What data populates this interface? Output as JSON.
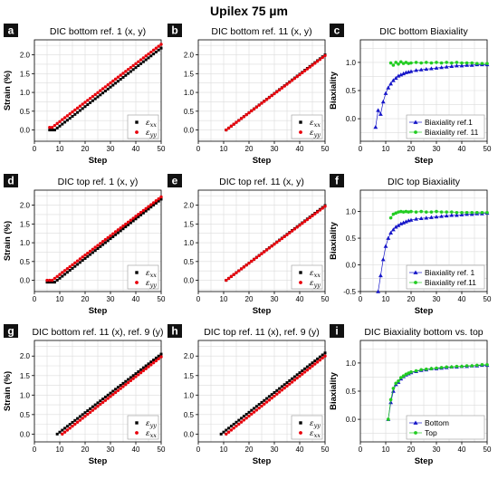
{
  "figure": {
    "title": "Upilex 75 µm"
  },
  "colors": {
    "exx": "#000000",
    "eyy": "#e8000b",
    "ref1": "#1515c8",
    "ref11": "#22cc22",
    "grid": "#dcdcdc"
  },
  "chart_data": [
    {
      "letter": "a",
      "type": "scatter",
      "title": "DIC bottom ref. 1 (x, y)",
      "xlabel": "Step",
      "ylabel": "Strain (%)",
      "xlim": [
        0,
        50
      ],
      "ylim": [
        -0.3,
        2.4
      ],
      "xticks": [
        0,
        10,
        20,
        30,
        40,
        50
      ],
      "yticks": [
        0.0,
        0.5,
        1.0,
        1.5,
        2.0
      ],
      "legend": "bottom-right",
      "grid": true,
      "series": [
        {
          "name": "εxx",
          "color": "#000000",
          "marker": "square",
          "gen": {
            "x0": 6,
            "x1": 50,
            "y0": -0.01,
            "y1": 2.18,
            "knee": 8,
            "yk": 0.0
          }
        },
        {
          "name": "εyy",
          "color": "#e8000b",
          "marker": "circle",
          "gen": {
            "x0": 6,
            "x1": 50,
            "y0": 0.05,
            "y1": 2.28,
            "knee": 7,
            "yk": 0.07
          }
        }
      ]
    },
    {
      "letter": "b",
      "type": "scatter",
      "title": "DIC bottom ref. 11 (x, y)",
      "xlabel": "Step",
      "ylabel": "",
      "xlim": [
        0,
        50
      ],
      "ylim": [
        -0.3,
        2.4
      ],
      "xticks": [
        0,
        10,
        20,
        30,
        40,
        50
      ],
      "yticks": [
        0.0,
        0.5,
        1.0,
        1.5,
        2.0
      ],
      "legend": "bottom-right",
      "grid": true,
      "series": [
        {
          "name": "εxx",
          "color": "#000000",
          "marker": "square",
          "gen": {
            "x0": 11,
            "x1": 50,
            "y0": 0.0,
            "y1": 2.0
          }
        },
        {
          "name": "εyy",
          "color": "#e8000b",
          "marker": "circle",
          "gen": {
            "x0": 11,
            "x1": 50,
            "y0": 0.0,
            "y1": 1.98
          }
        }
      ]
    },
    {
      "letter": "c",
      "type": "scatter",
      "title": "DIC bottom Biaxiality",
      "xlabel": "Step",
      "ylabel": "Biaxiality",
      "xlim": [
        0,
        50
      ],
      "ylim": [
        -0.4,
        1.4
      ],
      "xticks": [
        0,
        10,
        20,
        30,
        40,
        50
      ],
      "yticks": [
        0.0,
        0.5,
        1.0
      ],
      "legend": "bottom-right",
      "grid": true,
      "series": [
        {
          "name": "Biaxiality ref.1",
          "color": "#1515c8",
          "marker": "triangle",
          "line": true,
          "points": [
            [
              6,
              -0.15
            ],
            [
              7,
              0.15
            ],
            [
              8,
              0.08
            ],
            [
              9,
              0.3
            ],
            [
              10,
              0.45
            ],
            [
              11,
              0.55
            ],
            [
              12,
              0.62
            ],
            [
              13,
              0.68
            ],
            [
              14,
              0.72
            ],
            [
              15,
              0.76
            ],
            [
              16,
              0.78
            ],
            [
              17,
              0.8
            ],
            [
              18,
              0.82
            ],
            [
              19,
              0.83
            ],
            [
              20,
              0.84
            ],
            [
              22,
              0.86
            ],
            [
              24,
              0.87
            ],
            [
              26,
              0.88
            ],
            [
              28,
              0.89
            ],
            [
              30,
              0.9
            ],
            [
              32,
              0.91
            ],
            [
              34,
              0.92
            ],
            [
              36,
              0.93
            ],
            [
              38,
              0.94
            ],
            [
              40,
              0.94
            ],
            [
              42,
              0.95
            ],
            [
              44,
              0.95
            ],
            [
              46,
              0.96
            ],
            [
              48,
              0.96
            ],
            [
              50,
              0.96
            ]
          ]
        },
        {
          "name": "Biaxiality ref. 11",
          "color": "#22cc22",
          "marker": "circle",
          "line": true,
          "points": [
            [
              12,
              0.99
            ],
            [
              13,
              0.95
            ],
            [
              14,
              1.0
            ],
            [
              15,
              0.97
            ],
            [
              16,
              1.01
            ],
            [
              17,
              0.98
            ],
            [
              18,
              1.0
            ],
            [
              19,
              0.98
            ],
            [
              20,
              0.99
            ],
            [
              22,
              1.0
            ],
            [
              24,
              0.99
            ],
            [
              26,
              1.0
            ],
            [
              28,
              0.99
            ],
            [
              30,
              1.0
            ],
            [
              32,
              0.99
            ],
            [
              34,
              1.0
            ],
            [
              36,
              0.99
            ],
            [
              38,
              1.0
            ],
            [
              40,
              0.99
            ],
            [
              42,
              0.99
            ],
            [
              44,
              0.99
            ],
            [
              46,
              0.98
            ],
            [
              48,
              0.98
            ],
            [
              50,
              0.98
            ]
          ]
        }
      ]
    },
    {
      "letter": "d",
      "type": "scatter",
      "title": "DIC top ref. 1 (x, y)",
      "xlabel": "Step",
      "ylabel": "Strain (%)",
      "xlim": [
        0,
        50
      ],
      "ylim": [
        -0.3,
        2.4
      ],
      "xticks": [
        0,
        10,
        20,
        30,
        40,
        50
      ],
      "yticks": [
        0.0,
        0.5,
        1.0,
        1.5,
        2.0
      ],
      "legend": "bottom-right",
      "grid": true,
      "series": [
        {
          "name": "εxx",
          "color": "#000000",
          "marker": "square",
          "gen": {
            "x0": 5,
            "x1": 50,
            "y0": 0.0,
            "y1": 2.16,
            "knee": 8,
            "yk": -0.05
          }
        },
        {
          "name": "εyy",
          "color": "#e8000b",
          "marker": "circle",
          "gen": {
            "x0": 5,
            "x1": 50,
            "y0": 0.0,
            "y1": 2.22,
            "knee": 7,
            "yk": 0.0
          }
        }
      ]
    },
    {
      "letter": "e",
      "type": "scatter",
      "title": "DIC top ref. 11 (x, y)",
      "xlabel": "Step",
      "ylabel": "",
      "xlim": [
        0,
        50
      ],
      "ylim": [
        -0.3,
        2.4
      ],
      "xticks": [
        0,
        10,
        20,
        30,
        40,
        50
      ],
      "yticks": [
        0.0,
        0.5,
        1.0,
        1.5,
        2.0
      ],
      "legend": "bottom-right",
      "grid": true,
      "series": [
        {
          "name": "εxx",
          "color": "#000000",
          "marker": "square",
          "gen": {
            "x0": 11,
            "x1": 50,
            "y0": 0.0,
            "y1": 1.99
          }
        },
        {
          "name": "εyy",
          "color": "#e8000b",
          "marker": "circle",
          "gen": {
            "x0": 11,
            "x1": 50,
            "y0": 0.0,
            "y1": 1.97
          }
        }
      ]
    },
    {
      "letter": "f",
      "type": "scatter",
      "title": "DIC top Biaxiality",
      "xlabel": "Step",
      "ylabel": "Biaxiality",
      "xlim": [
        0,
        50
      ],
      "ylim": [
        -0.5,
        1.4
      ],
      "xticks": [
        0,
        10,
        20,
        30,
        40,
        50
      ],
      "yticks": [
        -0.5,
        0.0,
        0.5,
        1.0
      ],
      "legend": "bottom-right",
      "grid": true,
      "series": [
        {
          "name": "Biaxiality ref. 1",
          "color": "#1515c8",
          "marker": "triangle",
          "line": true,
          "points": [
            [
              7,
              -0.5
            ],
            [
              8,
              -0.2
            ],
            [
              9,
              0.1
            ],
            [
              10,
              0.35
            ],
            [
              11,
              0.5
            ],
            [
              12,
              0.6
            ],
            [
              13,
              0.66
            ],
            [
              14,
              0.71
            ],
            [
              15,
              0.74
            ],
            [
              16,
              0.77
            ],
            [
              17,
              0.79
            ],
            [
              18,
              0.81
            ],
            [
              19,
              0.83
            ],
            [
              20,
              0.84
            ],
            [
              22,
              0.86
            ],
            [
              24,
              0.87
            ],
            [
              26,
              0.88
            ],
            [
              28,
              0.89
            ],
            [
              30,
              0.9
            ],
            [
              32,
              0.91
            ],
            [
              34,
              0.92
            ],
            [
              36,
              0.93
            ],
            [
              38,
              0.93
            ],
            [
              40,
              0.94
            ],
            [
              42,
              0.95
            ],
            [
              44,
              0.95
            ],
            [
              46,
              0.96
            ],
            [
              48,
              0.96
            ],
            [
              50,
              0.97
            ]
          ]
        },
        {
          "name": "Biaxiality ref.11",
          "color": "#22cc22",
          "marker": "circle",
          "line": true,
          "points": [
            [
              12,
              0.88
            ],
            [
              13,
              0.95
            ],
            [
              14,
              0.97
            ],
            [
              15,
              0.99
            ],
            [
              16,
              1.0
            ],
            [
              17,
              0.99
            ],
            [
              18,
              1.0
            ],
            [
              19,
              0.99
            ],
            [
              20,
              1.0
            ],
            [
              22,
              0.99
            ],
            [
              24,
              1.0
            ],
            [
              26,
              0.99
            ],
            [
              28,
              0.99
            ],
            [
              30,
              1.0
            ],
            [
              32,
              0.99
            ],
            [
              34,
              0.99
            ],
            [
              36,
              0.99
            ],
            [
              38,
              0.98
            ],
            [
              40,
              0.98
            ],
            [
              42,
              0.98
            ],
            [
              44,
              0.98
            ],
            [
              46,
              0.98
            ],
            [
              48,
              0.98
            ],
            [
              50,
              0.98
            ]
          ]
        }
      ]
    },
    {
      "letter": "g",
      "type": "scatter",
      "title": "DIC bottom ref. 11 (x), ref. 9 (y)",
      "xlabel": "Step",
      "ylabel": "Strain (%)",
      "xlim": [
        0,
        50
      ],
      "ylim": [
        -0.2,
        2.4
      ],
      "xticks": [
        0,
        10,
        20,
        30,
        40,
        50
      ],
      "yticks": [
        0.0,
        0.5,
        1.0,
        1.5,
        2.0
      ],
      "legend": "bottom-right",
      "grid": true,
      "series": [
        {
          "name": "εyy",
          "color": "#000000",
          "marker": "square",
          "gen": {
            "x0": 9,
            "x1": 50,
            "y0": 0.0,
            "y1": 2.05
          }
        },
        {
          "name": "εxx",
          "color": "#e8000b",
          "marker": "circle",
          "gen": {
            "x0": 11,
            "x1": 50,
            "y0": 0.0,
            "y1": 1.98
          }
        }
      ]
    },
    {
      "letter": "h",
      "type": "scatter",
      "title": "DIC top ref. 11 (x), ref. 9 (y)",
      "xlabel": "Step",
      "ylabel": "",
      "xlim": [
        0,
        50
      ],
      "ylim": [
        -0.2,
        2.4
      ],
      "xticks": [
        0,
        10,
        20,
        30,
        40,
        50
      ],
      "yticks": [
        0.0,
        0.5,
        1.0,
        1.5,
        2.0
      ],
      "legend": "bottom-right",
      "grid": true,
      "series": [
        {
          "name": "εyy",
          "color": "#000000",
          "marker": "square",
          "gen": {
            "x0": 9,
            "x1": 50,
            "y0": 0.0,
            "y1": 2.08
          }
        },
        {
          "name": "εxx",
          "color": "#e8000b",
          "marker": "circle",
          "gen": {
            "x0": 11,
            "x1": 50,
            "y0": 0.0,
            "y1": 2.0
          }
        }
      ]
    },
    {
      "letter": "i",
      "type": "scatter",
      "title": "DIC Biaxiality bottom vs. top",
      "xlabel": "Step",
      "ylabel": "Biaxiality",
      "xlim": [
        0,
        50
      ],
      "ylim": [
        -0.4,
        1.4
      ],
      "xticks": [
        0,
        10,
        20,
        30,
        40,
        50
      ],
      "yticks": [
        0.0,
        0.5,
        1.0
      ],
      "legend": "bottom-right",
      "grid": true,
      "series": [
        {
          "name": "Bottom",
          "color": "#1515c8",
          "marker": "triangle",
          "line": true,
          "points": [
            [
              11,
              0.0
            ],
            [
              12,
              0.3
            ],
            [
              13,
              0.5
            ],
            [
              14,
              0.62
            ],
            [
              15,
              0.66
            ],
            [
              16,
              0.72
            ],
            [
              17,
              0.76
            ],
            [
              18,
              0.79
            ],
            [
              19,
              0.81
            ],
            [
              20,
              0.83
            ],
            [
              22,
              0.85
            ],
            [
              24,
              0.87
            ],
            [
              26,
              0.88
            ],
            [
              28,
              0.9
            ],
            [
              30,
              0.9
            ],
            [
              32,
              0.91
            ],
            [
              34,
              0.92
            ],
            [
              36,
              0.93
            ],
            [
              38,
              0.93
            ],
            [
              40,
              0.94
            ],
            [
              42,
              0.94
            ],
            [
              44,
              0.95
            ],
            [
              46,
              0.95
            ],
            [
              48,
              0.96
            ],
            [
              50,
              0.96
            ]
          ]
        },
        {
          "name": "Top",
          "color": "#22cc22",
          "marker": "circle",
          "line": true,
          "points": [
            [
              11,
              0.0
            ],
            [
              12,
              0.35
            ],
            [
              13,
              0.55
            ],
            [
              14,
              0.64
            ],
            [
              15,
              0.68
            ],
            [
              16,
              0.74
            ],
            [
              17,
              0.77
            ],
            [
              18,
              0.8
            ],
            [
              19,
              0.82
            ],
            [
              20,
              0.84
            ],
            [
              22,
              0.86
            ],
            [
              24,
              0.88
            ],
            [
              26,
              0.89
            ],
            [
              28,
              0.9
            ],
            [
              30,
              0.91
            ],
            [
              32,
              0.92
            ],
            [
              34,
              0.93
            ],
            [
              36,
              0.93
            ],
            [
              38,
              0.94
            ],
            [
              40,
              0.94
            ],
            [
              42,
              0.95
            ],
            [
              44,
              0.95
            ],
            [
              46,
              0.96
            ],
            [
              48,
              0.97
            ],
            [
              50,
              0.97
            ]
          ]
        }
      ]
    }
  ]
}
